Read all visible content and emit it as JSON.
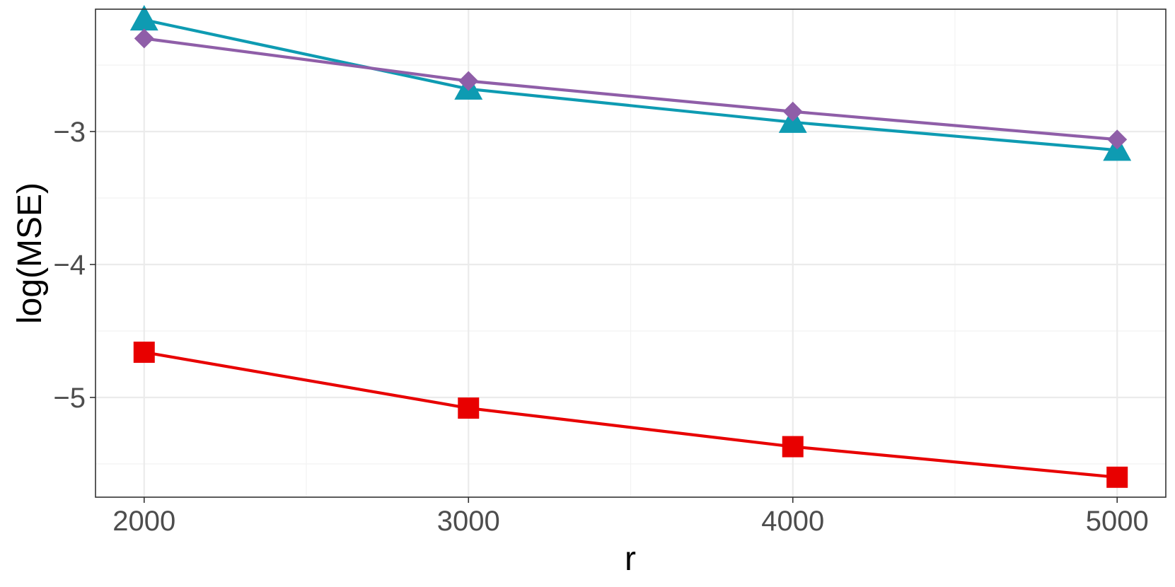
{
  "chart_data": {
    "type": "line",
    "title": "",
    "xlabel": "r",
    "ylabel": "log(MSE)",
    "x": [
      2000,
      3000,
      4000,
      5000
    ],
    "xlim": [
      1850,
      5150
    ],
    "ylim": [
      -5.75,
      -2.08
    ],
    "x_ticks": [
      2000,
      3000,
      4000,
      5000
    ],
    "x_tick_labels": [
      "2000",
      "3000",
      "4000",
      "5000"
    ],
    "x_minor_ticks": [
      2500,
      3500,
      4500
    ],
    "y_ticks": [
      -5,
      -4,
      -3
    ],
    "y_tick_labels": [
      "−5",
      "−4",
      "−3"
    ],
    "y_minor_ticks": [
      -5.5,
      -4.5,
      -3.5,
      -2.5
    ],
    "grid": true,
    "legend": "none",
    "series": [
      {
        "values": [
          -2.16,
          -2.68,
          -2.93,
          -3.14
        ],
        "color": "#0e9bb2",
        "marker": "triangle"
      },
      {
        "values": [
          -2.3,
          -2.62,
          -2.85,
          -3.06
        ],
        "color": "#8f5ea8",
        "marker": "diamond"
      },
      {
        "values": [
          -4.66,
          -5.08,
          -5.37,
          -5.6
        ],
        "color": "#e80000",
        "marker": "square"
      }
    ]
  }
}
